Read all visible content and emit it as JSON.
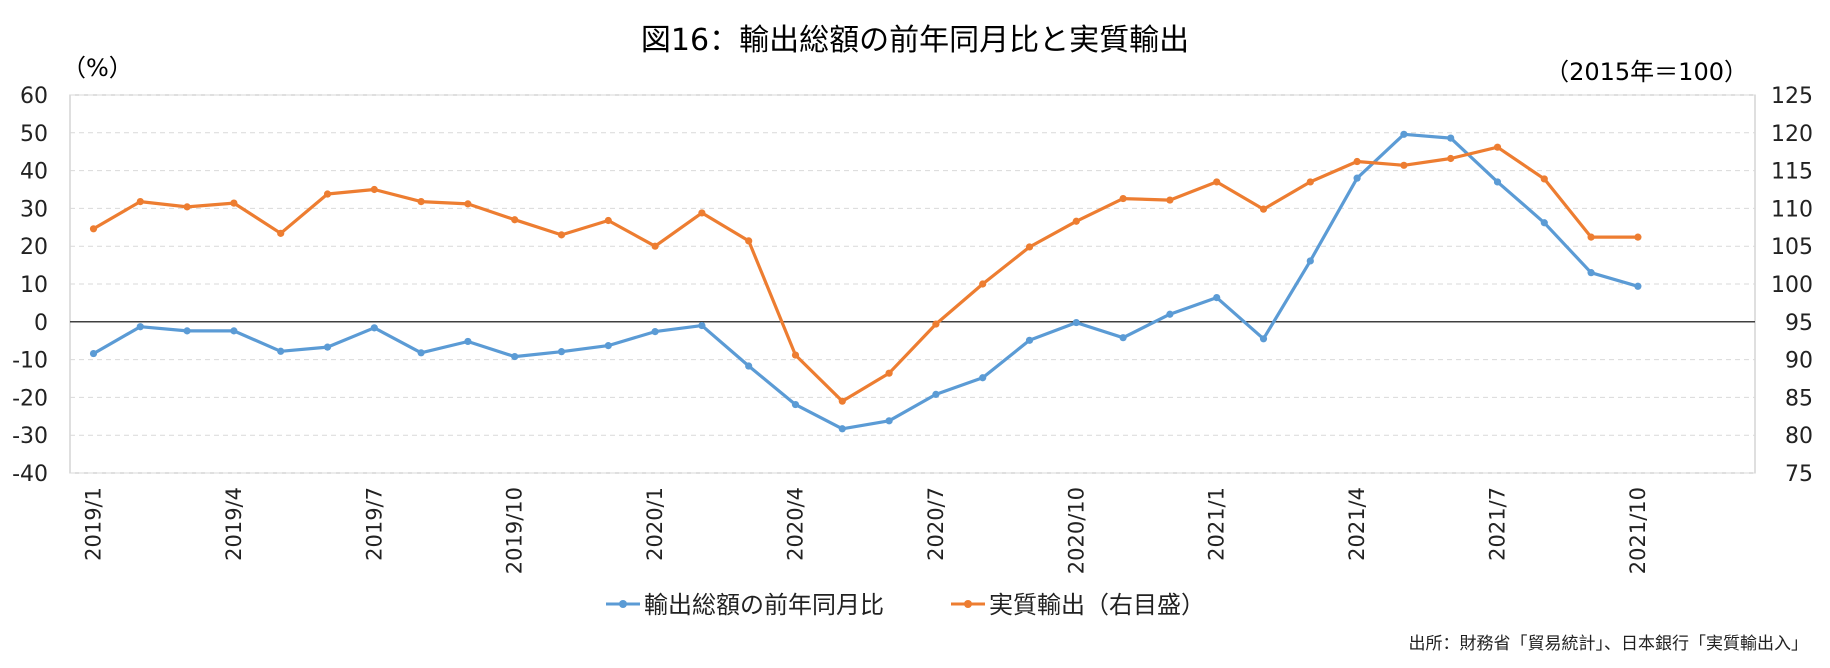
{
  "chart_data": {
    "type": "line",
    "title": "図16：輸出総額の前年同月比と実質輸出",
    "left_axis_unit": "（%）",
    "right_axis_unit": "（2015年＝100）",
    "left_ylim": [
      -40,
      60
    ],
    "left_ticks": [
      60,
      50,
      40,
      30,
      20,
      10,
      0,
      -10,
      -20,
      -30,
      -40
    ],
    "right_ylim": [
      75,
      125
    ],
    "right_ticks": [
      125,
      120,
      115,
      110,
      105,
      100,
      95,
      90,
      85,
      80,
      75
    ],
    "grid": true,
    "legend_position": "bottom",
    "x": [
      "2019/1",
      "2019/2",
      "2019/3",
      "2019/4",
      "2019/5",
      "2019/6",
      "2019/7",
      "2019/8",
      "2019/9",
      "2019/10",
      "2019/11",
      "2019/12",
      "2020/1",
      "2020/2",
      "2020/3",
      "2020/4",
      "2020/5",
      "2020/6",
      "2020/7",
      "2020/8",
      "2020/9",
      "2020/10",
      "2020/11",
      "2020/12",
      "2021/1",
      "2021/2",
      "2021/3",
      "2021/4",
      "2021/5",
      "2021/6",
      "2021/7",
      "2021/8",
      "2021/9",
      "2021/10"
    ],
    "x_tick_labels": [
      "2019/1",
      "2019/4",
      "2019/7",
      "2019/10",
      "2020/1",
      "2020/4",
      "2020/7",
      "2020/10",
      "2021/1",
      "2021/4",
      "2021/7",
      "2021/10"
    ],
    "series": [
      {
        "name": "輸出総額の前年同月比",
        "axis": "left",
        "color": "#5b9bd5",
        "values": [
          -8.4,
          -1.3,
          -2.4,
          -2.4,
          -7.8,
          -6.7,
          -1.6,
          -8.2,
          -5.2,
          -9.2,
          -7.9,
          -6.3,
          -2.6,
          -1.0,
          -11.7,
          -21.9,
          -28.3,
          -26.2,
          -19.2,
          -14.8,
          -4.9,
          -0.2,
          -4.2,
          2.0,
          6.4,
          -4.5,
          16.1,
          38.0,
          49.6,
          48.6,
          37.0,
          26.2,
          13.0,
          9.4
        ]
      },
      {
        "name": "実質輸出（右目盛）",
        "axis": "right",
        "color": "#ed7d31",
        "values": [
          107.3,
          110.9,
          110.2,
          110.7,
          106.7,
          111.9,
          112.5,
          110.9,
          110.6,
          108.5,
          106.5,
          108.4,
          105.0,
          109.4,
          105.7,
          90.6,
          84.5,
          88.2,
          94.7,
          100.0,
          104.9,
          108.3,
          111.3,
          111.1,
          113.5,
          109.9,
          113.5,
          116.2,
          115.7,
          116.6,
          118.1,
          113.9,
          106.2,
          106.2
        ]
      }
    ],
    "source": "出所：財務省「貿易統計」、日本銀行「実質輸出入」"
  }
}
